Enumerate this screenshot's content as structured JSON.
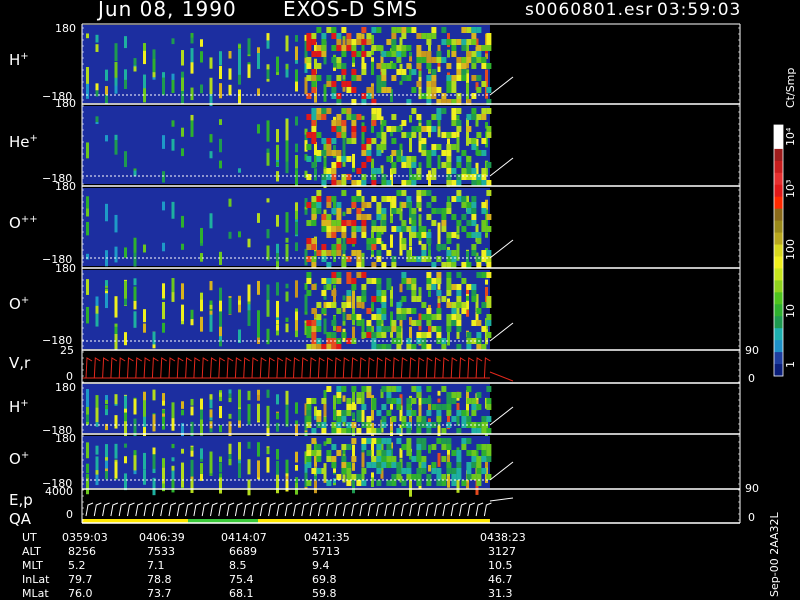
{
  "header": {
    "date": "Jun 08, 1990",
    "mission": "EXOS-D SMS",
    "file": "s0060801.esr",
    "time": "03:59:03"
  },
  "colors": {
    "panel_line": "#ffffff",
    "background_plasma": "#1c2ea0",
    "velocity_trace": "#e2281c",
    "qa_yellow": "#ffe800",
    "qa_green": "#39c939"
  },
  "panels": [
    {
      "label": "H",
      "sup": "+",
      "ymax": "180",
      "ymin": "−180"
    },
    {
      "label": "He",
      "sup": "+",
      "ymax": "180",
      "ymin": "−180"
    },
    {
      "label": "O",
      "sup": "++",
      "ymax": "180",
      "ymin": "−180"
    },
    {
      "label": "O",
      "sup": "+",
      "ymax": "180",
      "ymin": "−180"
    },
    {
      "label": "V,r",
      "sup": "",
      "ymax": "25",
      "ymin": "0",
      "right_top": "90",
      "right_bottom": "0"
    },
    {
      "label": "H",
      "sup": "+",
      "ymax": "180",
      "ymin": "−180"
    },
    {
      "label": "O",
      "sup": "+",
      "ymax": "180",
      "ymin": "−180"
    },
    {
      "label": "E,p",
      "label2": "QA",
      "sup": "",
      "ymax": "4000",
      "ymin": "0",
      "right_top": "90",
      "right_bottom": "0"
    }
  ],
  "colorbar": {
    "unit": "Ct/Smp",
    "ticks": [
      "10⁴",
      "10³",
      "100",
      "10",
      "1"
    ],
    "colors": [
      "#ffffff",
      "#ffffff",
      "#9e1d1d",
      "#c81e1e",
      "#e63030",
      "#e01818",
      "#ff2a00",
      "#8a6a1a",
      "#9a8a1a",
      "#b9a81e",
      "#d8d81e",
      "#f0f01e",
      "#c8e61e",
      "#8fd21e",
      "#4ec41e",
      "#2eb02e",
      "#1e9a50",
      "#1eb0b0",
      "#1e90c8",
      "#1e3ea0",
      "#0a1e7a"
    ]
  },
  "footer": {
    "rows": [
      {
        "name": "UT",
        "values": [
          "0359:03",
          "0406:39",
          "0414:07",
          "0421:35",
          "0438:23"
        ]
      },
      {
        "name": "ALT",
        "values": [
          "8256",
          "7533",
          "6689",
          "5713",
          "3127"
        ]
      },
      {
        "name": "MLT",
        "values": [
          "5.2",
          "7.1",
          "8.5",
          "9.4",
          "10.5"
        ]
      },
      {
        "name": "InLat",
        "values": [
          "79.7",
          "78.8",
          "75.4",
          "69.8",
          "46.7"
        ]
      },
      {
        "name": "MLat",
        "values": [
          "76.0",
          "73.7",
          "68.1",
          "59.8",
          "31.3"
        ]
      }
    ]
  },
  "side_stamp": "Sep-00  2AA32L",
  "chart_data": {
    "type": "heatmap",
    "title": "Jun 08, 1990   EXOS-D SMS",
    "xlabel": "UT",
    "x_ticks": [
      "0359:03",
      "0406:39",
      "0414:07",
      "0421:35",
      "0438:23"
    ],
    "data_end_fraction": 0.62,
    "panels": [
      "H+",
      "He+",
      "O++",
      "O+",
      "V,r",
      "H+",
      "O+",
      "E,p / QA"
    ],
    "pitch_angle_range": [
      -180,
      180
    ],
    "velocity_range": [
      0,
      25
    ],
    "energy_range": [
      0,
      4000
    ],
    "count_scale": "log",
    "count_range": [
      1,
      10000
    ]
  }
}
